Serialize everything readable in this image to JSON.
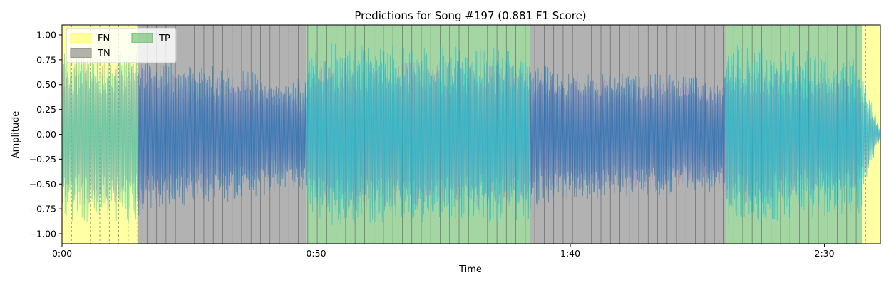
{
  "chart_data": {
    "type": "line",
    "title": "Predictions for Song #197 (0.881 F1 Score)",
    "xlabel": "Time",
    "ylabel": "Amplitude",
    "xlim": [
      0,
      161
    ],
    "ylim": [
      -1.1,
      1.1
    ],
    "x_ticks": [
      {
        "value": 0,
        "label": "0:00"
      },
      {
        "value": 50,
        "label": "0:50"
      },
      {
        "value": 100,
        "label": "1:40"
      },
      {
        "value": 150,
        "label": "2:30"
      }
    ],
    "y_ticks": [
      {
        "value": 1.0,
        "label": "1.00"
      },
      {
        "value": 0.75,
        "label": "0.75"
      },
      {
        "value": 0.5,
        "label": "0.50"
      },
      {
        "value": 0.25,
        "label": "0.25"
      },
      {
        "value": 0.0,
        "label": "0.00"
      },
      {
        "value": -0.25,
        "label": "−0.25"
      },
      {
        "value": -0.5,
        "label": "−0.50"
      },
      {
        "value": -0.75,
        "label": "−0.75"
      },
      {
        "value": -1.0,
        "label": "−1.00"
      }
    ],
    "grid": false,
    "legend": {
      "placement": "upper-left",
      "entries": [
        {
          "label": "FN",
          "color": "#ffff66"
        },
        {
          "label": "TN",
          "color": "#7f7f7f"
        },
        {
          "label": "TP",
          "color": "#66bb66"
        }
      ]
    },
    "regions": [
      {
        "label": "FN",
        "start": 0,
        "end": 15
      },
      {
        "label": "TN",
        "start": 15,
        "end": 48
      },
      {
        "label": "TP",
        "start": 48,
        "end": 92
      },
      {
        "label": "TN",
        "start": 92,
        "end": 130.5
      },
      {
        "label": "TP",
        "start": 130.5,
        "end": 157.5
      },
      {
        "label": "FN",
        "start": 157.5,
        "end": 161
      }
    ],
    "segment_boundary_interval": 1.86,
    "series": [
      {
        "role": "waveform-overlay",
        "color": "#9467bd",
        "envelope": [
          {
            "x": 0,
            "amp": 0.72
          },
          {
            "x": 15,
            "amp": 0.72
          },
          {
            "x": 20,
            "amp": 0.62
          },
          {
            "x": 35,
            "amp": 0.55
          },
          {
            "x": 48,
            "amp": 0.38
          },
          {
            "x": 50,
            "amp": 0.75
          },
          {
            "x": 92,
            "amp": 0.72
          },
          {
            "x": 93,
            "amp": 0.58
          },
          {
            "x": 110,
            "amp": 0.55
          },
          {
            "x": 130,
            "amp": 0.5
          },
          {
            "x": 131,
            "amp": 0.72
          },
          {
            "x": 157,
            "amp": 0.55
          },
          {
            "x": 161,
            "amp": 0.05
          }
        ]
      },
      {
        "role": "waveform-predicted",
        "color": "#17becf",
        "segments": [
          {
            "start": 0,
            "end": 15,
            "color": "#4fd1a0"
          },
          {
            "start": 15,
            "end": 48,
            "color": "#1f77b4"
          },
          {
            "start": 48,
            "end": 92,
            "color": "#17becf"
          },
          {
            "start": 92,
            "end": 130.5,
            "color": "#1f77b4"
          },
          {
            "start": 130.5,
            "end": 161,
            "color": "#17becf"
          }
        ],
        "envelope": [
          {
            "x": 0,
            "amp": 0.9
          },
          {
            "x": 15,
            "amp": 0.88
          },
          {
            "x": 16,
            "amp": 0.75
          },
          {
            "x": 30,
            "amp": 0.7
          },
          {
            "x": 48,
            "amp": 0.55
          },
          {
            "x": 49,
            "amp": 0.92
          },
          {
            "x": 92,
            "amp": 0.88
          },
          {
            "x": 93,
            "amp": 0.72
          },
          {
            "x": 112,
            "amp": 0.62
          },
          {
            "x": 130,
            "amp": 0.58
          },
          {
            "x": 131,
            "amp": 0.92
          },
          {
            "x": 157,
            "amp": 0.8
          },
          {
            "x": 161,
            "amp": 0.02
          }
        ]
      }
    ]
  }
}
